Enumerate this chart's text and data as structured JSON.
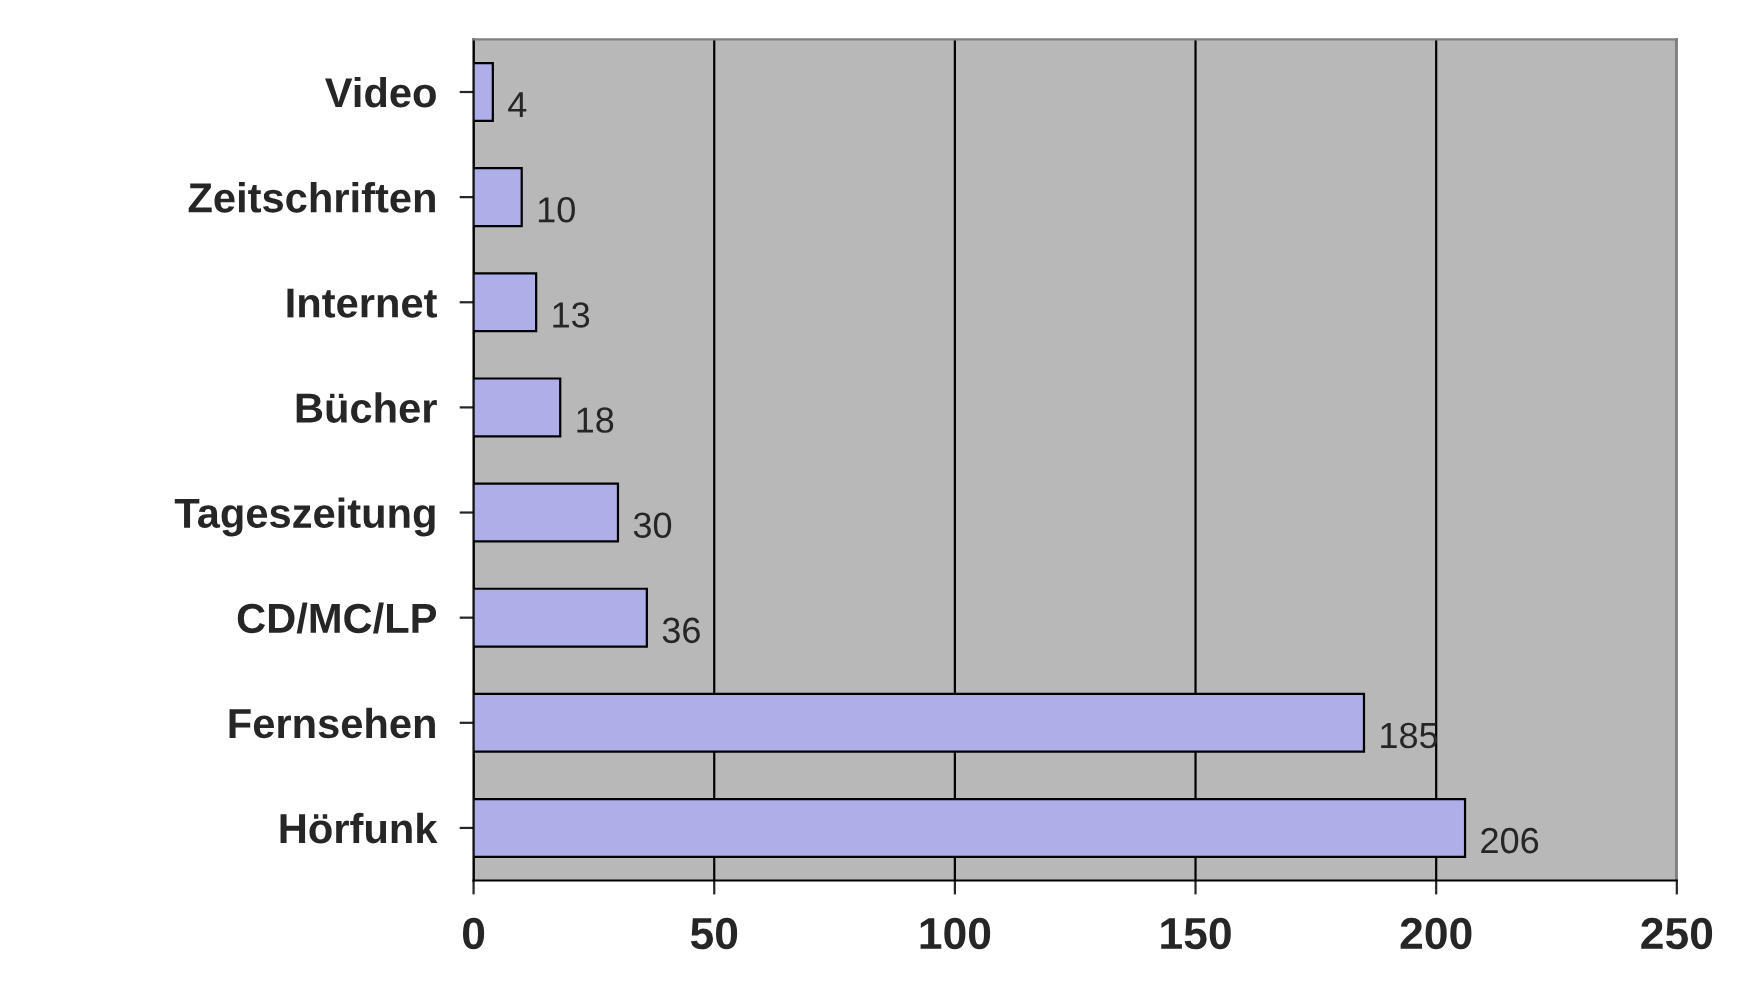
{
  "chart_data": {
    "type": "bar",
    "orientation": "horizontal",
    "categories": [
      "Video",
      "Zeitschriften",
      "Internet",
      "Bücher",
      "Tageszeitung",
      "CD/MC/LP",
      "Fernsehen",
      "Hörfunk"
    ],
    "values": [
      4,
      10,
      13,
      18,
      30,
      36,
      185,
      206
    ],
    "color": "#aeaee8",
    "xlim": [
      0,
      250
    ],
    "xticks": [
      0,
      50,
      100,
      150,
      200,
      250
    ],
    "grid": "x",
    "data_labels": true
  }
}
